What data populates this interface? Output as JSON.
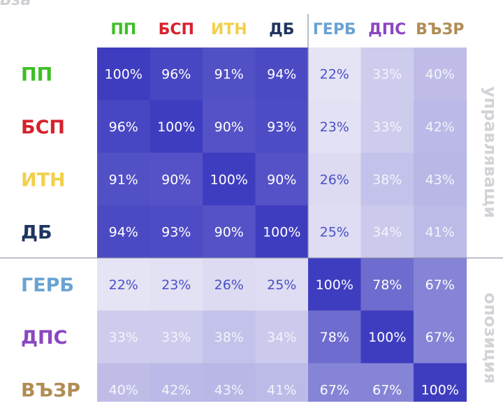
{
  "page": {
    "title": "Вза"
  },
  "groups": {
    "governing": "управляващи",
    "opposition": "опозиция"
  },
  "chart_data": {
    "type": "heatmap",
    "title": "",
    "xlabel": "",
    "ylabel": "",
    "categories": [
      "ПП",
      "БСП",
      "ИТН",
      "ДБ",
      "ГЕРБ",
      "ДПС",
      "ВЪЗР"
    ],
    "category_colors": [
      "#3dbf25",
      "#d6222d",
      "#f2d04a",
      "#1f3560",
      "#6aa3d3",
      "#8b46c2",
      "#b08c54"
    ],
    "value_format": "percent",
    "values": [
      [
        100,
        96,
        91,
        94,
        22,
        33,
        40
      ],
      [
        96,
        100,
        90,
        93,
        23,
        33,
        42
      ],
      [
        91,
        90,
        100,
        90,
        26,
        38,
        43
      ],
      [
        94,
        93,
        90,
        100,
        25,
        34,
        41
      ],
      [
        22,
        23,
        26,
        25,
        100,
        78,
        67
      ],
      [
        33,
        33,
        38,
        34,
        78,
        100,
        67
      ],
      [
        40,
        42,
        43,
        41,
        67,
        67,
        100
      ]
    ],
    "color_scale": {
      "low": "#e9e8f6",
      "high": "#3f3dbf"
    },
    "grid": false
  }
}
